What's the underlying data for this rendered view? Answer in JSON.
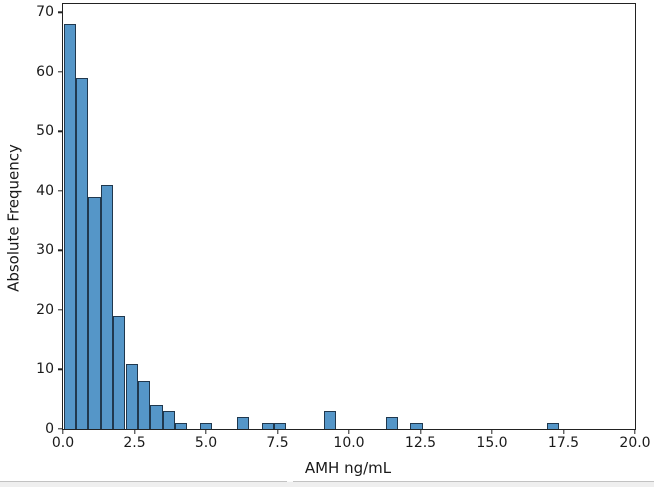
{
  "chart_data": {
    "type": "histogram",
    "title": "",
    "xlabel": "AMH ng/mL",
    "ylabel": "Absolute Frequency",
    "xlim": [
      0,
      20
    ],
    "ylim": [
      0,
      71.4
    ],
    "x_tick_values": [
      0,
      2.5,
      5,
      7.5,
      10,
      12.5,
      15,
      17.5,
      20
    ],
    "x_tick_labels": [
      "0.0",
      "2.5",
      "5.0",
      "7.5",
      "10.0",
      "12.5",
      "15.0",
      "17.5",
      "20.0"
    ],
    "y_tick_values": [
      0,
      10,
      20,
      30,
      40,
      50,
      60,
      70
    ],
    "y_tick_labels": [
      "0",
      "10",
      "20",
      "30",
      "40",
      "50",
      "60",
      "70"
    ],
    "grid": false,
    "legend_position": "none",
    "bin_width": 0.433,
    "bars": [
      {
        "bin_start": 0.02,
        "count": 68
      },
      {
        "bin_start": 0.45,
        "count": 59
      },
      {
        "bin_start": 0.89,
        "count": 39
      },
      {
        "bin_start": 1.32,
        "count": 41
      },
      {
        "bin_start": 1.75,
        "count": 19
      },
      {
        "bin_start": 2.19,
        "count": 11
      },
      {
        "bin_start": 2.62,
        "count": 8
      },
      {
        "bin_start": 3.05,
        "count": 4
      },
      {
        "bin_start": 3.48,
        "count": 3
      },
      {
        "bin_start": 3.92,
        "count": 1
      },
      {
        "bin_start": 4.78,
        "count": 1
      },
      {
        "bin_start": 6.08,
        "count": 2
      },
      {
        "bin_start": 6.95,
        "count": 1
      },
      {
        "bin_start": 7.38,
        "count": 1
      },
      {
        "bin_start": 9.11,
        "count": 3
      },
      {
        "bin_start": 11.28,
        "count": 2
      },
      {
        "bin_start": 12.14,
        "count": 1
      },
      {
        "bin_start": 16.91,
        "count": 1
      }
    ],
    "colors": {
      "bar_fill": "#5596c8",
      "bar_edge": "#20384e",
      "axis": "#222222",
      "text": "#1a1a1a",
      "window_strip": "#efefef"
    }
  }
}
